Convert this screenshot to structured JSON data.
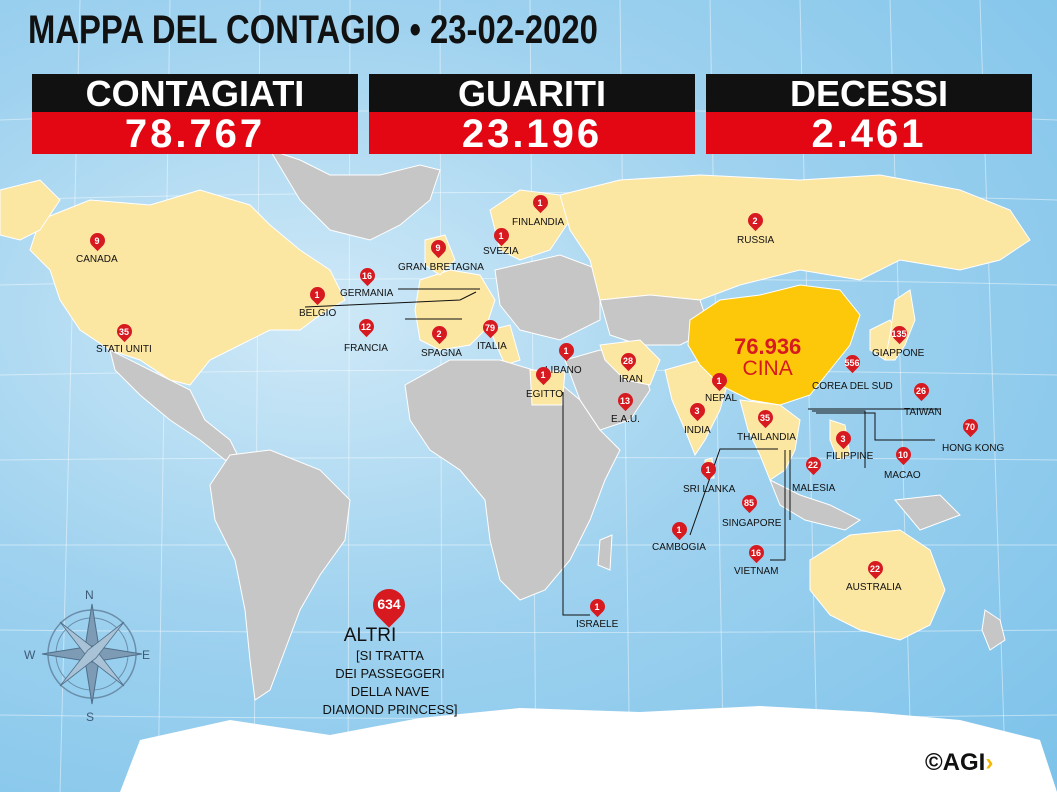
{
  "header": {
    "title": "MAPPA DEL CONTAGIO • 23-02-2020"
  },
  "stats": [
    {
      "label": "CONTAGIATI",
      "value": "78.767"
    },
    {
      "label": "GUARITI",
      "value": "23.196"
    },
    {
      "label": "DECESSI",
      "value": "2.461"
    }
  ],
  "china": {
    "value": "76.936",
    "name": "CINA"
  },
  "countries": [
    {
      "name": "CANADA",
      "count": "9"
    },
    {
      "name": "STATI UNITI",
      "count": "35"
    },
    {
      "name": "GRAN BRETAGNA",
      "count": "9"
    },
    {
      "name": "GERMANIA",
      "count": "16"
    },
    {
      "name": "BELGIO",
      "count": "1"
    },
    {
      "name": "FRANCIA",
      "count": "12"
    },
    {
      "name": "SPAGNA",
      "count": "2"
    },
    {
      "name": "ITALIA",
      "count": "79"
    },
    {
      "name": "SVEZIA",
      "count": "1"
    },
    {
      "name": "FINLANDIA",
      "count": "1"
    },
    {
      "name": "RUSSIA",
      "count": "2"
    },
    {
      "name": "LIBANO",
      "count": "1"
    },
    {
      "name": "EGITTO",
      "count": "1"
    },
    {
      "name": "IRAN",
      "count": "28"
    },
    {
      "name": "E.A.U.",
      "count": "13"
    },
    {
      "name": "ISRAELE",
      "count": "1"
    },
    {
      "name": "INDIA",
      "count": "3"
    },
    {
      "name": "NEPAL",
      "count": "1"
    },
    {
      "name": "SRI LANKA",
      "count": "1"
    },
    {
      "name": "THAILANDIA",
      "count": "35"
    },
    {
      "name": "CAMBOGIA",
      "count": "1"
    },
    {
      "name": "SINGAPORE",
      "count": "85"
    },
    {
      "name": "VIETNAM",
      "count": "16"
    },
    {
      "name": "MALESIA",
      "count": "22"
    },
    {
      "name": "FILIPPINE",
      "count": "3"
    },
    {
      "name": "MACAO",
      "count": "10"
    },
    {
      "name": "HONG KONG",
      "count": "70"
    },
    {
      "name": "TAIWAN",
      "count": "26"
    },
    {
      "name": "COREA DEL SUD",
      "count": "556"
    },
    {
      "name": "GIAPPONE",
      "count": "135"
    },
    {
      "name": "AUSTRALIA",
      "count": "22"
    }
  ],
  "others": {
    "count": "634",
    "label": "ALTRI",
    "lines": [
      "[SI TRATTA",
      "DEI PASSEGGERI",
      "DELLA NAVE",
      "DIAMOND PRINCESS]"
    ]
  },
  "compass": {
    "n": "N",
    "s": "S",
    "e": "E",
    "w": "W"
  },
  "logo": {
    "text": "©AGI",
    "arrow": "›"
  },
  "colors": {
    "affected": "#fbe6a2",
    "unaffected": "#c6c6c6",
    "china": "#fdc80a",
    "pin": "#d71920",
    "header_bar": "#111111",
    "value_bar": "#e30613",
    "sea": "#9fd2ef"
  }
}
